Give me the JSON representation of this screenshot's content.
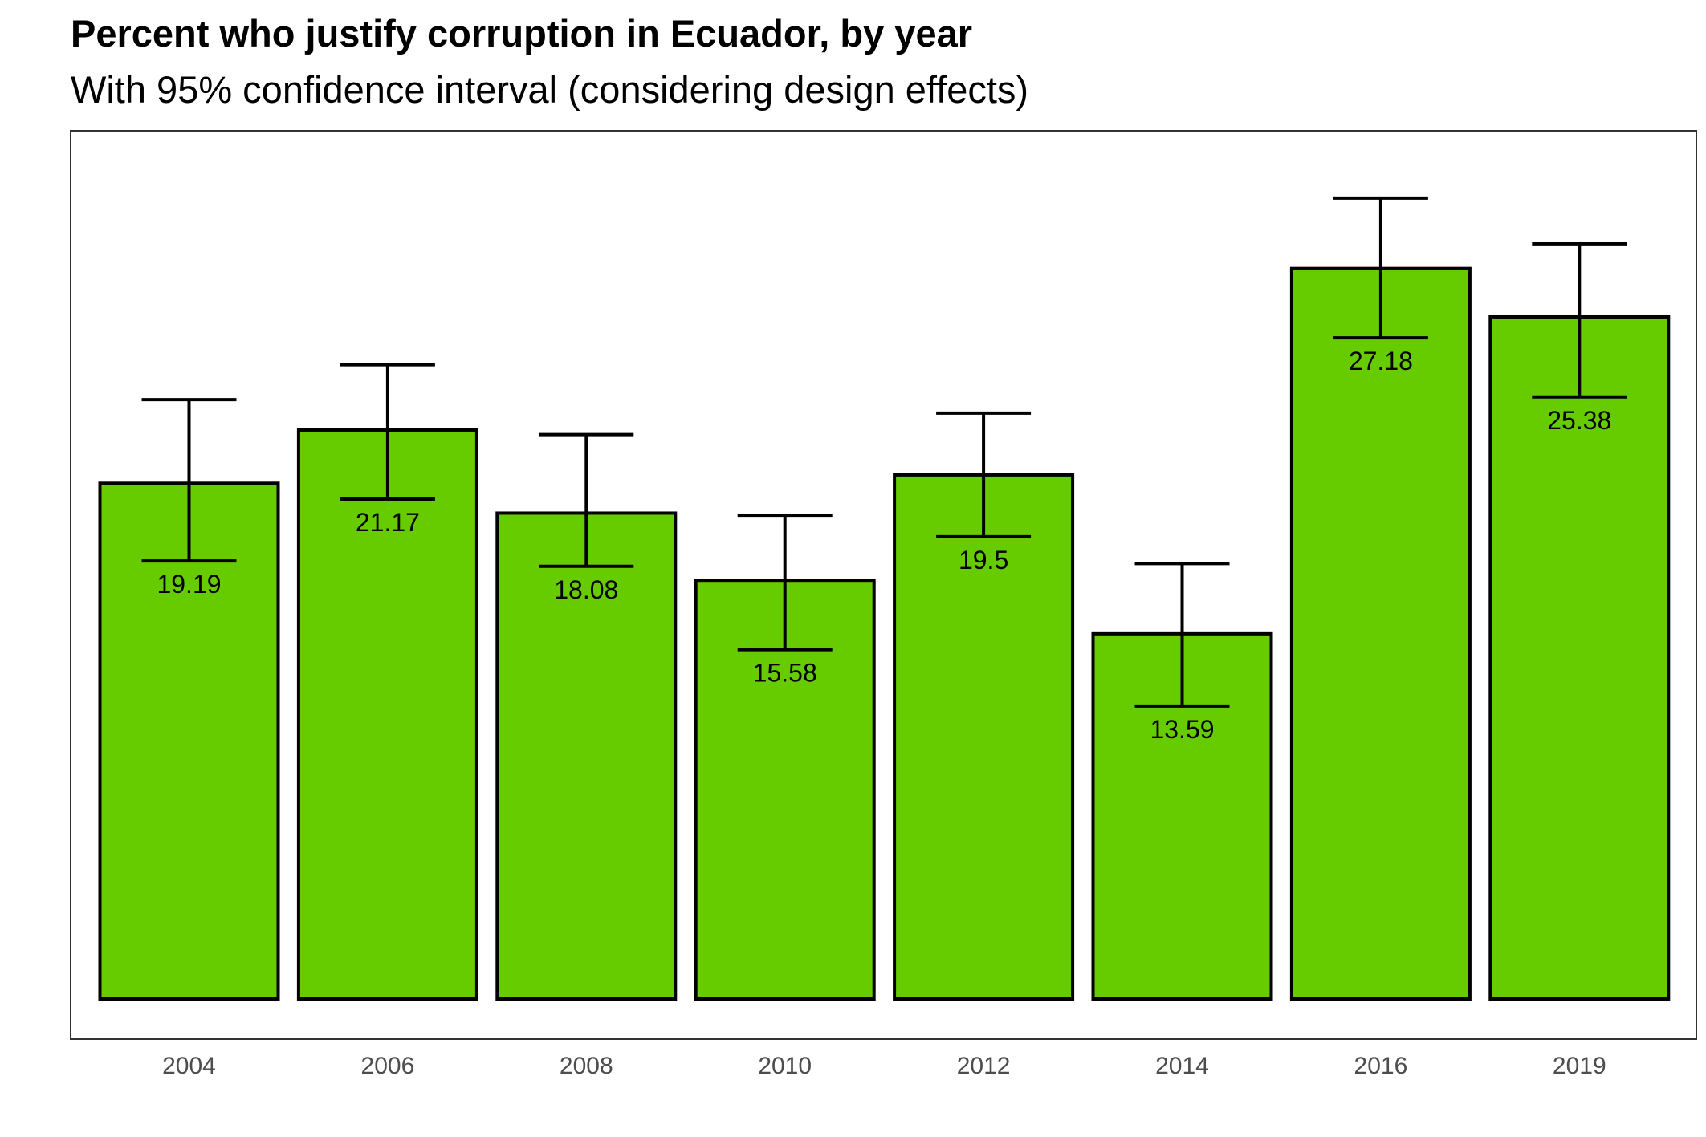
{
  "chart_data": {
    "type": "bar",
    "title": "Percent who justify corruption in Ecuador, by year",
    "subtitle": "With 95% confidence interval (considering design effects)",
    "xlabel": "",
    "ylabel": "",
    "categories": [
      "2004",
      "2006",
      "2008",
      "2010",
      "2012",
      "2014",
      "2016",
      "2019"
    ],
    "values": [
      19.19,
      21.17,
      18.08,
      15.58,
      19.5,
      13.59,
      27.18,
      25.38
    ],
    "value_labels": [
      "19.19",
      "21.17",
      "18.08",
      "15.58",
      "19.5",
      "13.59",
      "27.18",
      "25.38"
    ],
    "ci_lower": [
      16.3,
      18.6,
      16.1,
      13.0,
      17.2,
      10.9,
      24.6,
      22.4
    ],
    "ci_upper": [
      22.3,
      23.6,
      21.0,
      18.0,
      21.8,
      16.2,
      29.8,
      28.1
    ],
    "ylim": [
      0,
      31.5
    ],
    "grid": false,
    "legend": "none",
    "colors": {
      "bar_fill": "#66cc00",
      "bar_stroke": "#000000",
      "panel_border": "#333333",
      "tick_label": "#4d4d4d",
      "text": "#000000"
    }
  }
}
